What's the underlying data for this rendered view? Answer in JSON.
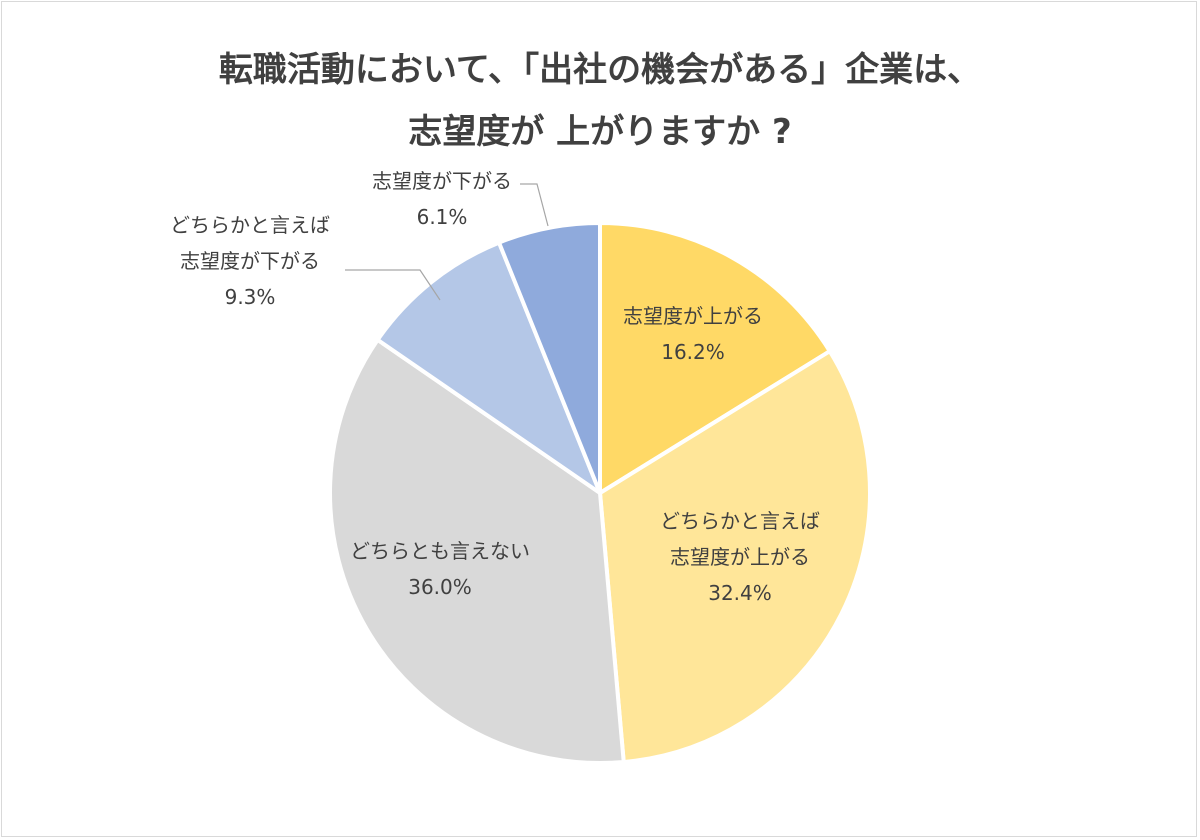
{
  "chart_data": {
    "type": "pie",
    "title_lines": [
      "転職活動において、「出社の機会がある」企業は、",
      "志望度が 上がりますか ?"
    ],
    "slices": [
      {
        "label_lines": [
          "志望度が上がる"
        ],
        "value": 16.2,
        "value_label": "16.2%",
        "color": "#ffd966"
      },
      {
        "label_lines": [
          "どちらかと言えば",
          "志望度が上がる"
        ],
        "value": 32.4,
        "value_label": "32.4%",
        "color": "#ffe699"
      },
      {
        "label_lines": [
          "どちらとも言えない"
        ],
        "value": 36.0,
        "value_label": "36.0%",
        "color": "#d9d9d9"
      },
      {
        "label_lines": [
          "どちらかと言えば",
          "志望度が下がる"
        ],
        "value": 9.3,
        "value_label": "9.3%",
        "color": "#b4c7e7"
      },
      {
        "label_lines": [
          "志望度が下がる"
        ],
        "value": 6.1,
        "value_label": "6.1%",
        "color": "#8faadc"
      }
    ],
    "start": "12 o'clock",
    "direction": "clockwise",
    "slice_border_color": "#ffffff",
    "leader_line_color": "#a6a6a6",
    "legend": "none"
  }
}
